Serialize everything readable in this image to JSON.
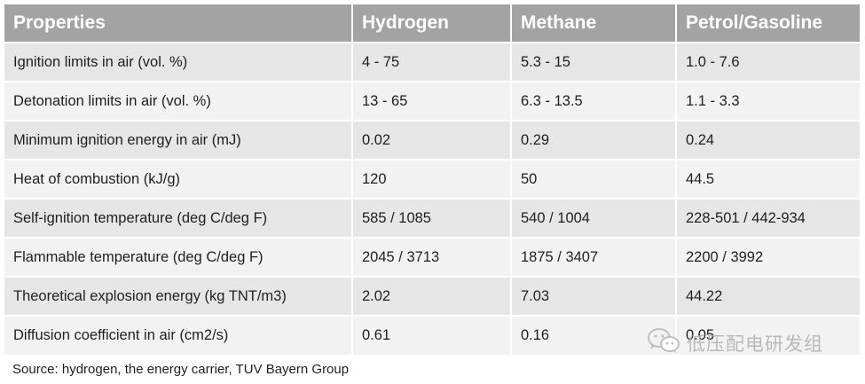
{
  "table": {
    "headers": [
      "Properties",
      "Hydrogen",
      "Methane",
      "Petrol/Gasoline"
    ],
    "rows": [
      [
        "Ignition limits in air (vol. %)",
        "4 - 75",
        "5.3 - 15",
        "1.0 - 7.6"
      ],
      [
        "Detonation limits in air (vol. %)",
        "13 - 65",
        "6.3 - 13.5",
        "1.1 - 3.3"
      ],
      [
        "Minimum ignition energy in air (mJ)",
        "0.02",
        "0.29",
        "0.24"
      ],
      [
        "Heat of combustion (kJ/g)",
        "120",
        "50",
        "44.5"
      ],
      [
        "Self-ignition temperature (deg C/deg F)",
        "585 / 1085",
        "540 / 1004",
        "228-501 / 442-934"
      ],
      [
        "Flammable temperature (deg C/deg F)",
        "2045 / 3713",
        "1875 / 3407",
        "2200 / 3992"
      ],
      [
        "Theoretical explosion energy (kg TNT/m3)",
        "2.02",
        "7.03",
        "44.22"
      ],
      [
        "Diffusion coefficient in air (cm2/s)",
        "0.61",
        "0.16",
        "0.05"
      ]
    ]
  },
  "source": "Source: hydrogen, the energy carrier, TUV Bayern Group",
  "watermark": {
    "icon": "wechat-icon",
    "text": "低压配电研发组"
  }
}
